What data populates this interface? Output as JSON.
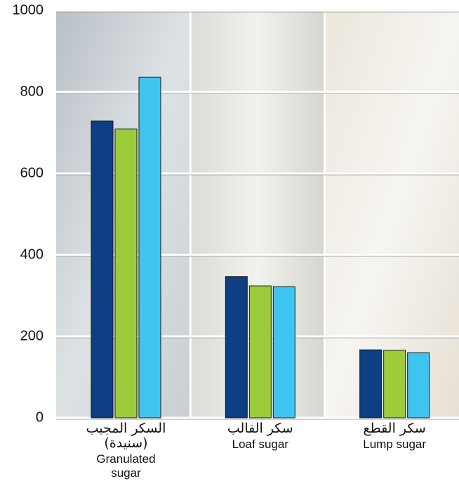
{
  "chart_data": {
    "type": "bar",
    "categories": [
      {
        "ar": [
          "السكر المجبب",
          "(سنيدة)"
        ],
        "en": "Granulated sugar"
      },
      {
        "ar": [
          "سكر القالب"
        ],
        "en": "Loaf sugar"
      },
      {
        "ar": [
          "سكر القطع"
        ],
        "en": "Lump sugar"
      }
    ],
    "series": [
      {
        "color": "#0d3f82",
        "values": [
          729,
          347,
          167
        ]
      },
      {
        "color": "#9ccb3b",
        "values": [
          709,
          324,
          166
        ]
      },
      {
        "color": "#3fc4ef",
        "values": [
          836,
          322,
          160
        ]
      }
    ],
    "ylim": [
      0,
      1000
    ],
    "yticks": [
      0,
      200,
      400,
      600,
      800,
      1000
    ],
    "grid": true
  }
}
